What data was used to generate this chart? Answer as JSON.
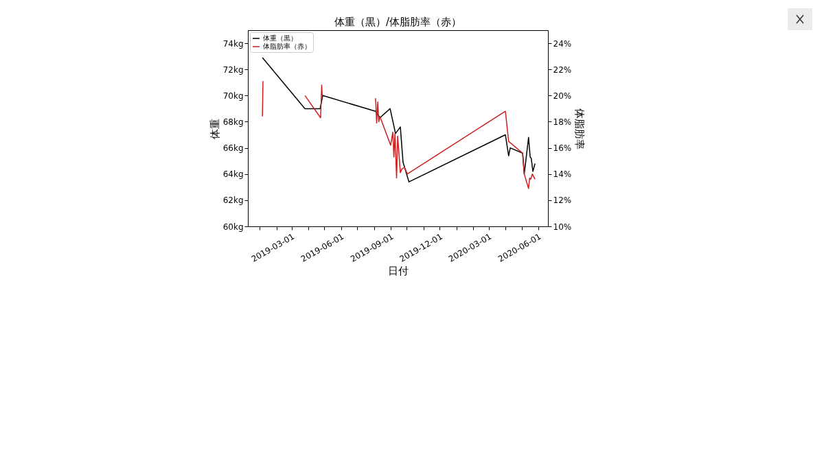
{
  "chart_data": {
    "type": "line",
    "title": "体重（黒）/体脂肪率（赤）",
    "xlabel": "日付",
    "ylabel": "体重",
    "y2label": "体脂肪率",
    "xlim": [
      "2018-12-10",
      "2020-06-19"
    ],
    "xticks": [
      {
        "value": "2019-01-01",
        "label": null
      },
      {
        "value": "2019-02-01",
        "label": null
      },
      "2019-03-01",
      {
        "value": "2019-04-01",
        "label": null
      },
      {
        "value": "2019-05-01",
        "label": null
      },
      "2019-06-01",
      {
        "value": "2019-07-01",
        "label": null
      },
      {
        "value": "2019-08-01",
        "label": null
      },
      "2019-09-01",
      {
        "value": "2019-10-01",
        "label": null
      },
      {
        "value": "2019-11-01",
        "label": null
      },
      "2019-12-01",
      {
        "value": "2020-01-01",
        "label": null
      },
      {
        "value": "2020-02-01",
        "label": null
      },
      "2020-03-01",
      {
        "value": "2020-04-01",
        "label": null
      },
      {
        "value": "2020-05-01",
        "label": null
      },
      "2020-06-01"
    ],
    "ylim": [
      60,
      75
    ],
    "yticks": [
      {
        "value": 60,
        "label": "60kg"
      },
      {
        "value": 62,
        "label": "62kg"
      },
      {
        "value": 64,
        "label": "64kg"
      },
      {
        "value": 66,
        "label": "66kg"
      },
      {
        "value": 68,
        "label": "68kg"
      },
      {
        "value": 70,
        "label": "70kg"
      },
      {
        "value": 72,
        "label": "72kg"
      },
      {
        "value": 74,
        "label": "74kg"
      }
    ],
    "y2lim": [
      10,
      25
    ],
    "y2ticks": [
      {
        "value": 10,
        "label": "10%"
      },
      {
        "value": 12,
        "label": "12%"
      },
      {
        "value": 14,
        "label": "14%"
      },
      {
        "value": 16,
        "label": "16%"
      },
      {
        "value": 18,
        "label": "18%"
      },
      {
        "value": 20,
        "label": "20%"
      },
      {
        "value": 22,
        "label": "22%"
      },
      {
        "value": 24,
        "label": "24%"
      }
    ],
    "legend": "top left",
    "series": [
      {
        "name": "体重（黒）",
        "color": "#000000",
        "x": [
          "2019-01-06",
          "2019-03-26",
          "2019-04-23",
          "2019-04-28",
          "2019-08-04",
          "2019-08-12",
          "2019-08-31",
          "2019-09-10",
          "2019-09-19",
          "2019-09-24",
          "2019-10-05",
          "2020-04-01",
          "2020-04-07",
          "2020-04-10",
          "2020-05-03",
          "2020-05-06",
          "2020-05-14",
          "2020-05-17",
          "2020-05-19",
          "2020-05-22",
          "2020-05-26"
        ],
        "values": [
          72.9,
          69.0,
          69.0,
          70.0,
          68.8,
          68.3,
          69.0,
          67.1,
          67.6,
          64.9,
          63.4,
          67.0,
          65.4,
          66.0,
          65.6,
          64.0,
          66.8,
          65.3,
          65.2,
          64.2,
          64.8
        ]
      },
      {
        "name": "体脂肪率（赤）",
        "color": "#cc1f1f",
        "axis": "y2",
        "x": [
          "2019-01-06",
          "2019-01-07",
          "2019-02-01",
          "2019-03-26",
          "2019-04-24",
          "2019-04-26",
          "2019-04-27",
          "2019-06-01",
          "2019-08-04",
          "2019-08-06",
          "2019-08-08",
          "2019-08-10",
          "2019-08-12",
          "2019-09-01",
          "2019-09-05",
          "2019-09-07",
          "2019-09-09",
          "2019-09-12",
          "2019-09-14",
          "2019-09-19",
          "2019-09-22",
          "2019-09-27",
          "2019-10-02",
          "2020-04-01",
          "2020-04-07",
          "2020-05-03",
          "2020-05-06",
          "2020-05-14",
          "2020-05-16",
          "2020-05-18",
          "2020-05-21",
          "2020-05-26"
        ],
        "values": [
          18.4,
          21.1,
          null,
          20.0,
          18.3,
          20.8,
          20.0,
          null,
          19.8,
          17.9,
          19.5,
          18.0,
          18.4,
          16.2,
          17.2,
          15.3,
          17.1,
          13.7,
          16.9,
          14.1,
          14.4,
          14.5,
          14.0,
          18.8,
          16.5,
          15.6,
          14.0,
          12.9,
          13.7,
          13.6,
          14.0,
          13.6
        ]
      }
    ]
  }
}
